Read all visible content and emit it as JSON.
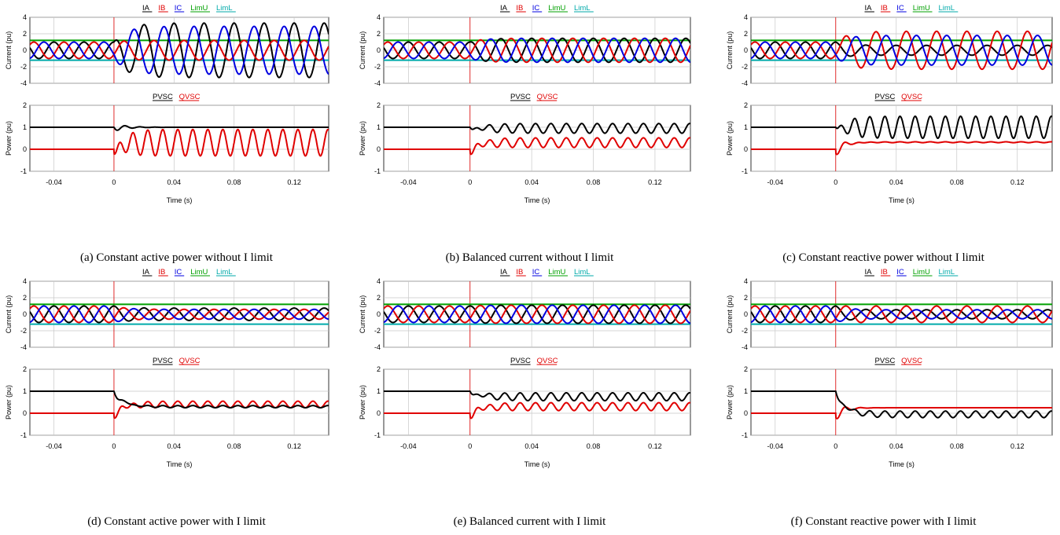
{
  "x_axis": {
    "label": "Time (s)",
    "range": [
      -0.056,
      0.143
    ],
    "ticks": [
      -0.04,
      0,
      0.04,
      0.08,
      0.12
    ],
    "tick_labels": [
      "-0.04",
      "0",
      "0.04",
      "0.08",
      "0.12"
    ]
  },
  "current_axis": {
    "label": "Current (pu)",
    "range": [
      -4,
      4
    ],
    "ticks": [
      4,
      2,
      0,
      -2,
      -4
    ],
    "tick_labels": [
      "4",
      "2",
      "0",
      "-2",
      "-4"
    ]
  },
  "power_axis": {
    "label": "Power (pu)",
    "range": [
      -1,
      2
    ],
    "ticks": [
      2,
      1,
      0,
      -1
    ],
    "tick_labels": [
      "2",
      "1",
      "0",
      "-1"
    ]
  },
  "legend_current": [
    {
      "name": "IA",
      "color": "#000000"
    },
    {
      "name": "IB",
      "color": "#e00000"
    },
    {
      "name": "IC",
      "color": "#0000e0"
    },
    {
      "name": "LimU",
      "color": "#00a000"
    },
    {
      "name": "LimL",
      "color": "#00aaaa"
    }
  ],
  "legend_power": [
    {
      "name": "PVSC",
      "color": "#000000"
    },
    {
      "name": "QVSC",
      "color": "#e00000"
    }
  ],
  "limits": {
    "LimU": 1.2,
    "LimL": -1.2,
    "fault_time": 0
  },
  "captions": [
    "(a) Constant active power without I limit",
    "(b) Balanced current without I limit",
    "(c) Constant reactive power without I limit",
    "(d) Constant active power with I limit",
    "(e) Balanced current with I limit",
    "(f) Constant reactive power with I limit"
  ],
  "chart_data": [
    {
      "id": "a",
      "type": "line",
      "frequency_hz": 50,
      "prefault_current_amplitude": 1.0,
      "postfault_current_amplitudes": {
        "IA": 3.3,
        "IB": 1.2,
        "IC": 2.9
      },
      "P_mean_post": 1.0,
      "P_osc_post": 0.0,
      "Q_mean_post": 0.3,
      "Q_osc_post": 0.6
    },
    {
      "id": "b",
      "type": "line",
      "frequency_hz": 50,
      "prefault_current_amplitude": 1.0,
      "postfault_current_amplitudes": {
        "IA": 1.45,
        "IB": 1.45,
        "IC": 1.45
      },
      "P_mean_post": 0.95,
      "P_osc_post": 0.22,
      "Q_mean_post": 0.3,
      "Q_osc_post": 0.22
    },
    {
      "id": "c",
      "type": "line",
      "frequency_hz": 50,
      "prefault_current_amplitude": 1.0,
      "postfault_current_amplitudes": {
        "IA": 0.6,
        "IB": 2.3,
        "IC": 1.8
      },
      "P_mean_post": 1.0,
      "P_osc_post": 0.5,
      "Q_mean_post": 0.32,
      "Q_osc_post": 0.02
    },
    {
      "id": "d",
      "type": "line",
      "frequency_hz": 50,
      "prefault_current_amplitude": 1.0,
      "postfault_current_amplitudes": {
        "IA": 0.75,
        "IB": 0.6,
        "IC": 0.6
      },
      "P_mean_post": 0.3,
      "P_osc_post": 0.05,
      "Q_mean_post": 0.4,
      "Q_osc_post": 0.15
    },
    {
      "id": "e",
      "type": "line",
      "frequency_hz": 50,
      "prefault_current_amplitude": 1.0,
      "postfault_current_amplitudes": {
        "IA": 1.1,
        "IB": 1.1,
        "IC": 1.1
      },
      "P_mean_post": 0.75,
      "P_osc_post": 0.18,
      "Q_mean_post": 0.3,
      "Q_osc_post": 0.18
    },
    {
      "id": "f",
      "type": "line",
      "frequency_hz": 50,
      "prefault_current_amplitude": 1.0,
      "postfault_current_amplitudes": {
        "IA": 0.55,
        "IB": 1.0,
        "IC": 0.55
      },
      "P_mean_post": -0.05,
      "P_osc_post": 0.15,
      "Q_mean_post": 0.25,
      "Q_osc_post": 0.0
    }
  ]
}
